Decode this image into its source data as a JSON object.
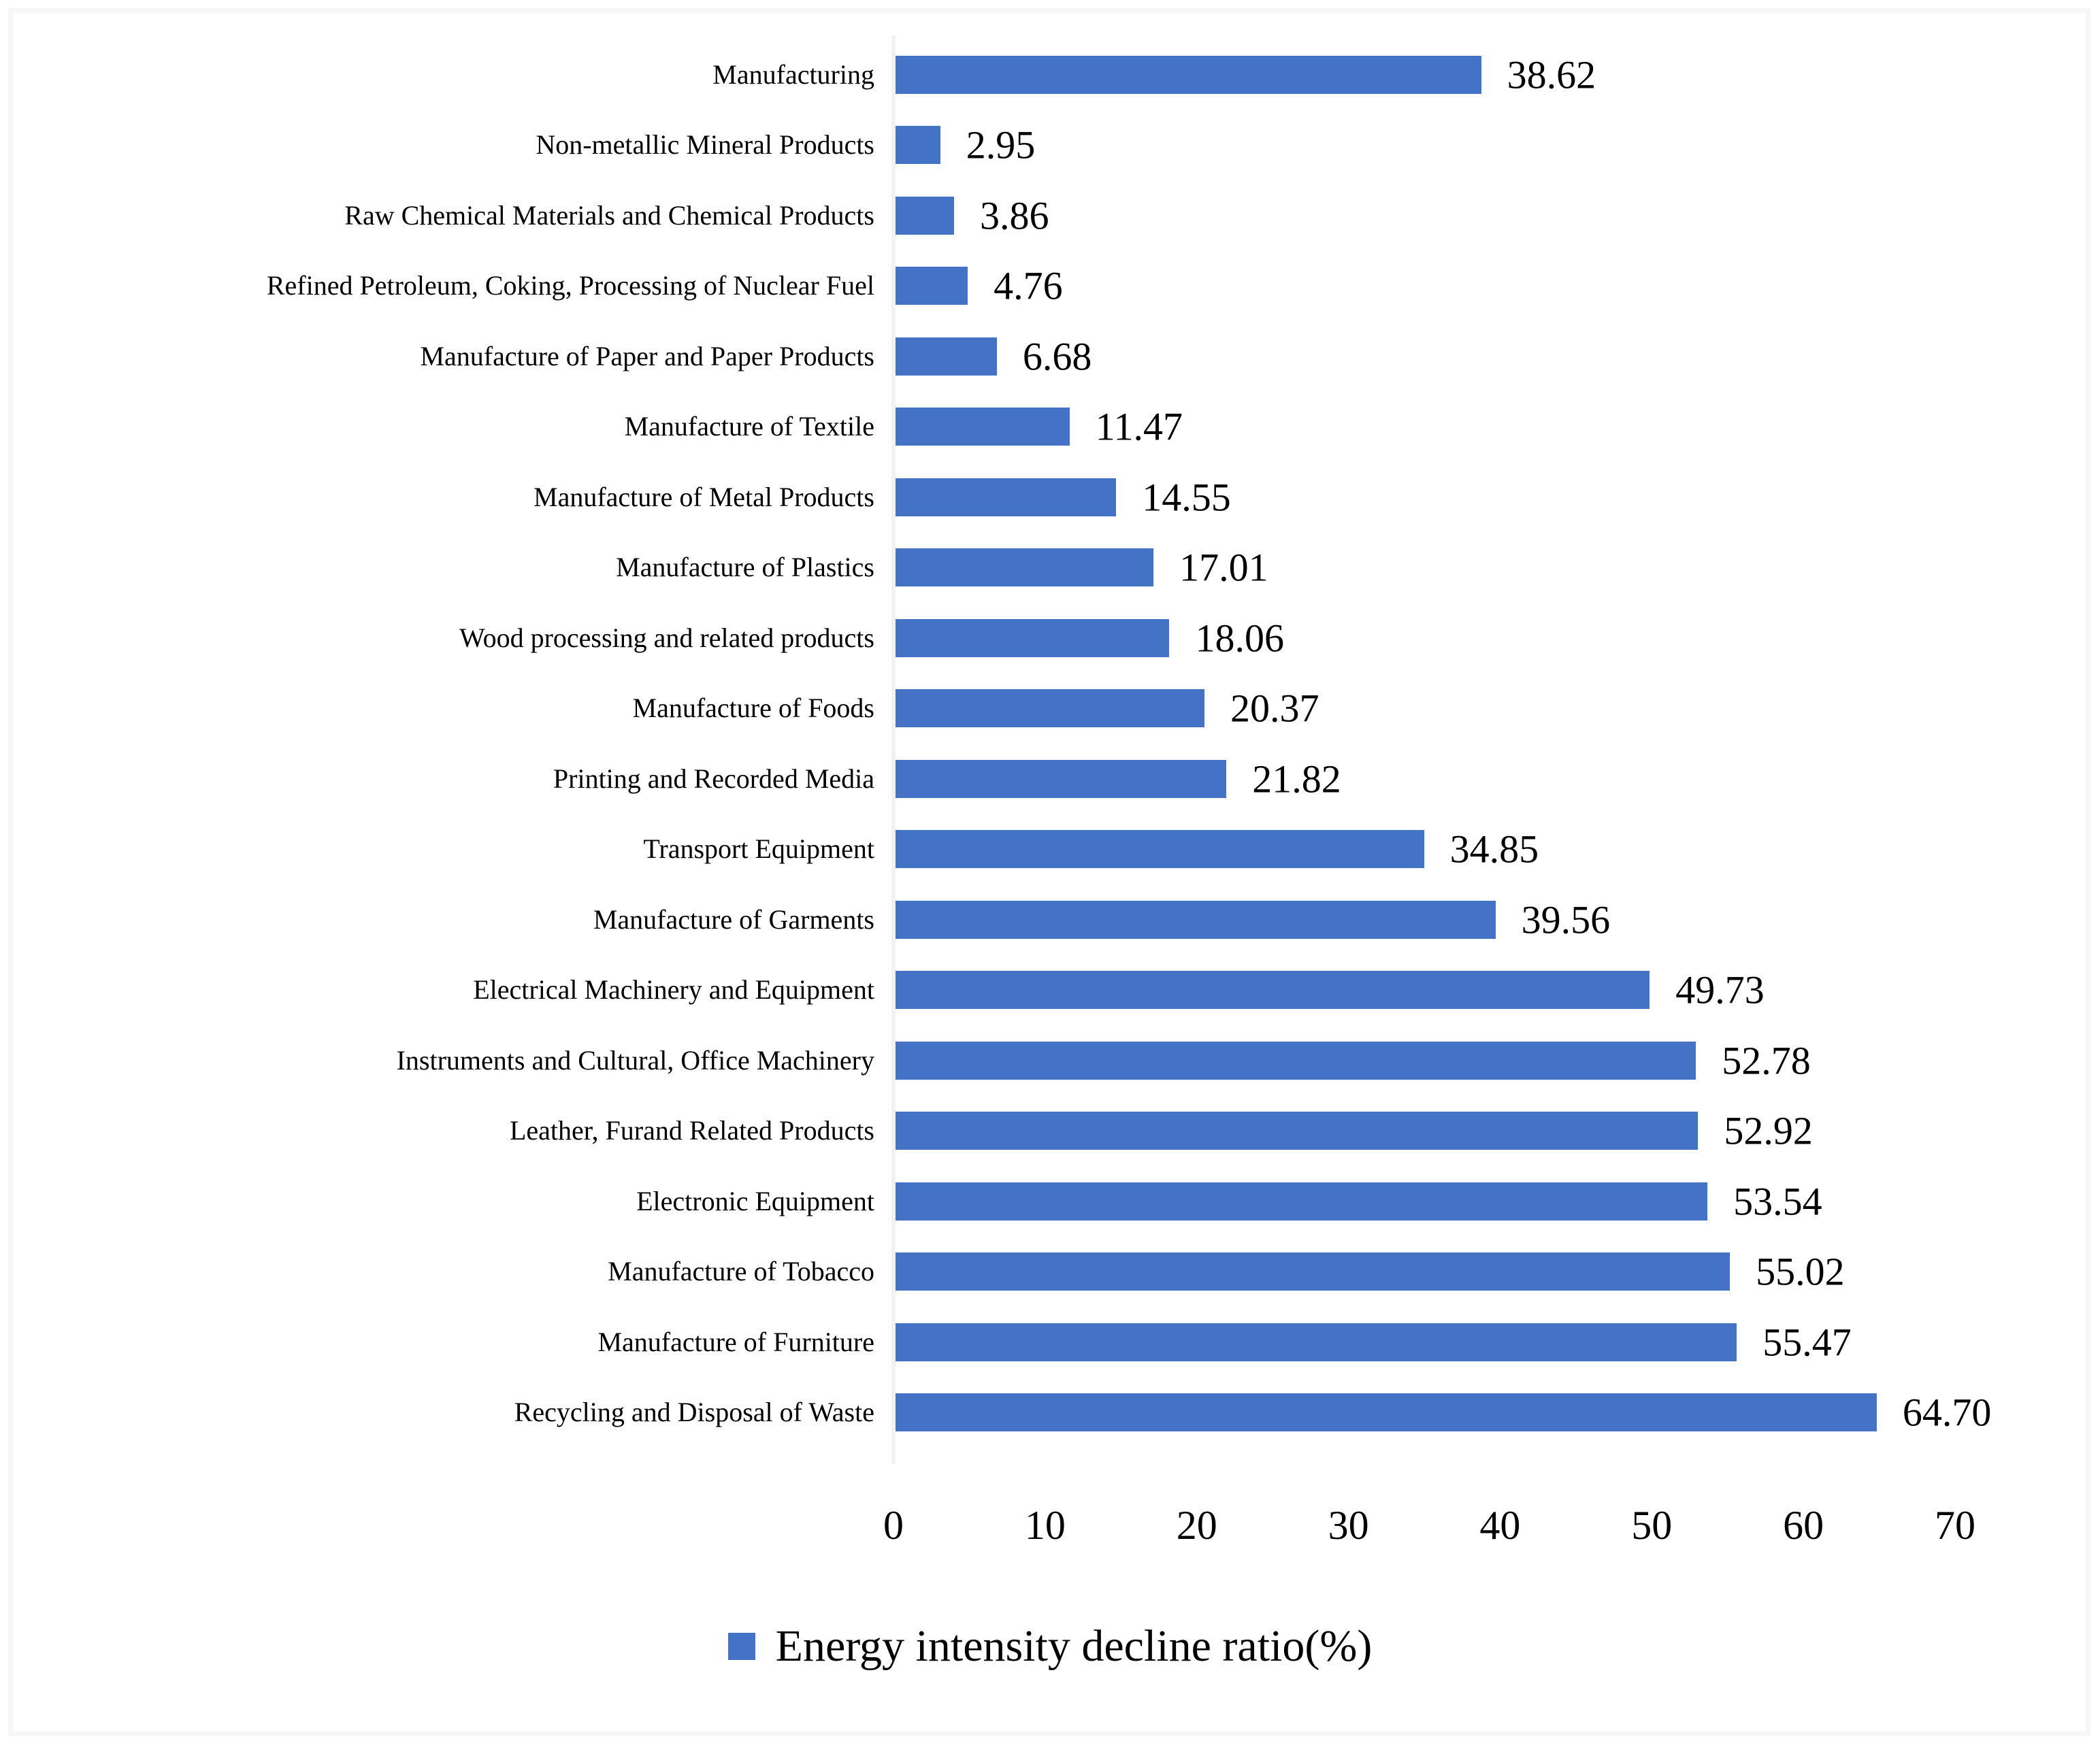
{
  "chart_data": {
    "type": "bar",
    "orientation": "horizontal",
    "title": "",
    "xlabel": "",
    "ylabel": "",
    "categories": [
      "Manufacturing",
      "Non-metallic Mineral Products",
      "Raw Chemical Materials and Chemical Products",
      "Refined Petroleum, Coking, Processing of Nuclear Fuel",
      "Manufacture of Paper and Paper Products",
      "Manufacture of Textile",
      "Manufacture of Metal Products",
      "Manufacture of Plastics",
      "Wood processing and related products",
      "Manufacture of Foods",
      "Printing and Recorded Media",
      "Transport Equipment",
      "Manufacture of Garments",
      "Electrical Machinery and Equipment",
      "Instruments and Cultural, Office Machinery",
      "Leather, Furand Related Products",
      "Electronic Equipment",
      "Manufacture of Tobacco",
      "Manufacture of Furniture",
      "Recycling and Disposal of Waste"
    ],
    "values": [
      38.62,
      2.95,
      3.86,
      4.76,
      6.68,
      11.47,
      14.55,
      17.01,
      18.06,
      20.37,
      21.82,
      34.85,
      39.56,
      49.73,
      52.78,
      52.92,
      53.54,
      55.02,
      55.47,
      64.7
    ],
    "value_labels": [
      "38.62",
      "2.95",
      "3.86",
      "4.76",
      "6.68",
      "11.47",
      "14.55",
      "17.01",
      "18.06",
      "20.37",
      "21.82",
      "34.85",
      "39.56",
      "49.73",
      "52.78",
      "52.92",
      "53.54",
      "55.02",
      "55.47",
      "64.70"
    ],
    "x_ticks": [
      "0",
      "10",
      "20",
      "30",
      "40",
      "50",
      "60",
      "70"
    ],
    "xlim": [
      0,
      70
    ],
    "grid": false,
    "bar_color": "#4472C4",
    "axis_line_color": "#F2F2F2",
    "legend": {
      "label": "Energy intensity decline ratio(%)",
      "position": "bottom",
      "marker_color": "#4472C4"
    }
  }
}
